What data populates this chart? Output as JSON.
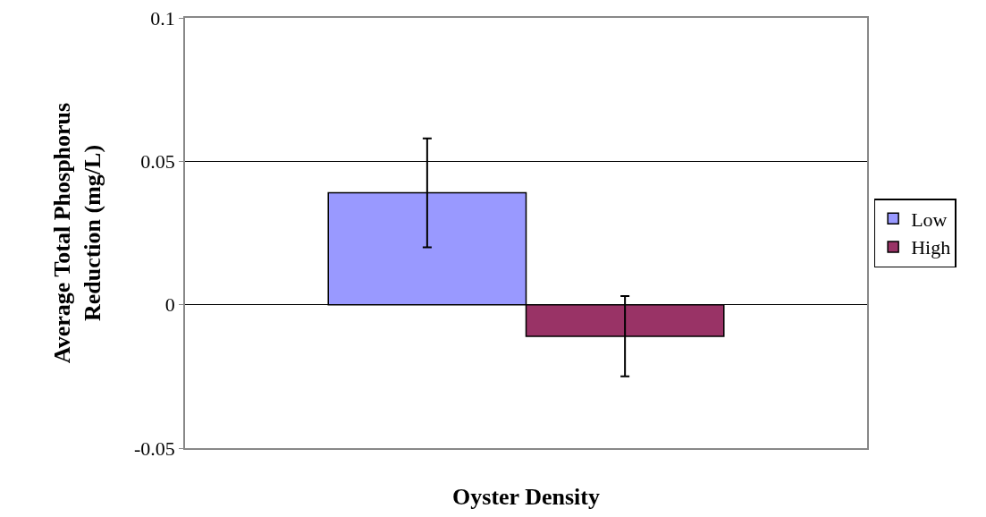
{
  "chart_data": {
    "type": "bar",
    "xlabel": "Oyster Density",
    "ylabel": "Average Total Phosphorus Reduction (mg/L)",
    "categories": [
      null
    ],
    "series": [
      {
        "name": "Low",
        "color": "#9999ff",
        "values": [
          0.039
        ],
        "errors": [
          0.019
        ]
      },
      {
        "name": "High",
        "color": "#993366",
        "values": [
          -0.011
        ],
        "errors": [
          0.014
        ]
      }
    ],
    "ylim": [
      -0.05,
      0.1
    ],
    "yticks": [
      -0.05,
      0,
      0.05,
      0.1
    ],
    "grid": "y",
    "legend": "right"
  }
}
